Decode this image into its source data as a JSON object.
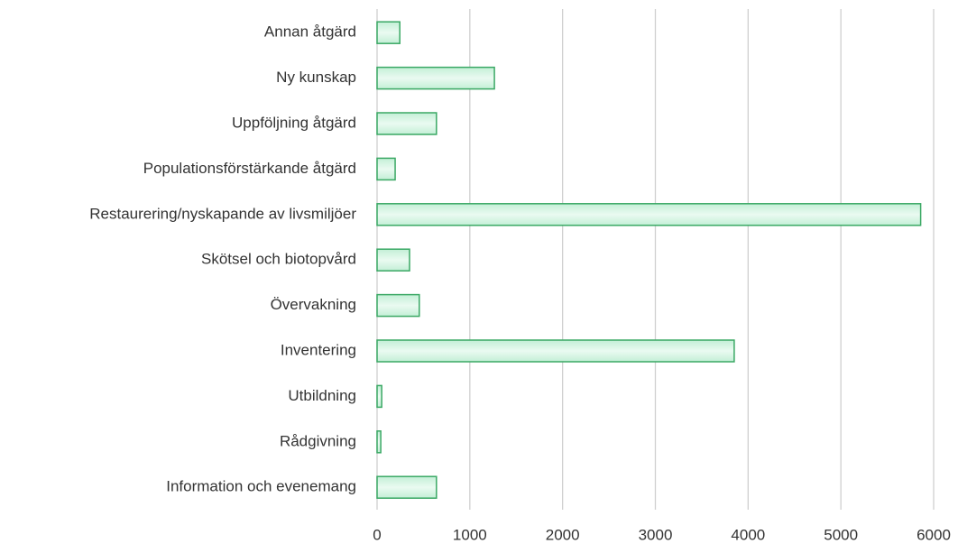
{
  "chart_data": {
    "type": "barh",
    "categories": [
      "Annan åtgärd",
      "Ny kunskap",
      "Uppföljning åtgärd",
      "Populationsförstärkande åtgärd",
      "Restaurering/nyskapande av livsmiljöer",
      "Skötsel och biotopvård",
      "Övervakning",
      "Inventering",
      "Utbildning",
      "Rådgivning",
      "Information och  evenemang"
    ],
    "values": [
      245,
      1265,
      640,
      195,
      5860,
      350,
      455,
      3850,
      50,
      40,
      640
    ],
    "color": "#3aa864",
    "xlim": [
      0,
      6000
    ],
    "xticks": [
      0,
      1000,
      2000,
      3000,
      4000,
      5000,
      6000
    ],
    "grid": true
  }
}
